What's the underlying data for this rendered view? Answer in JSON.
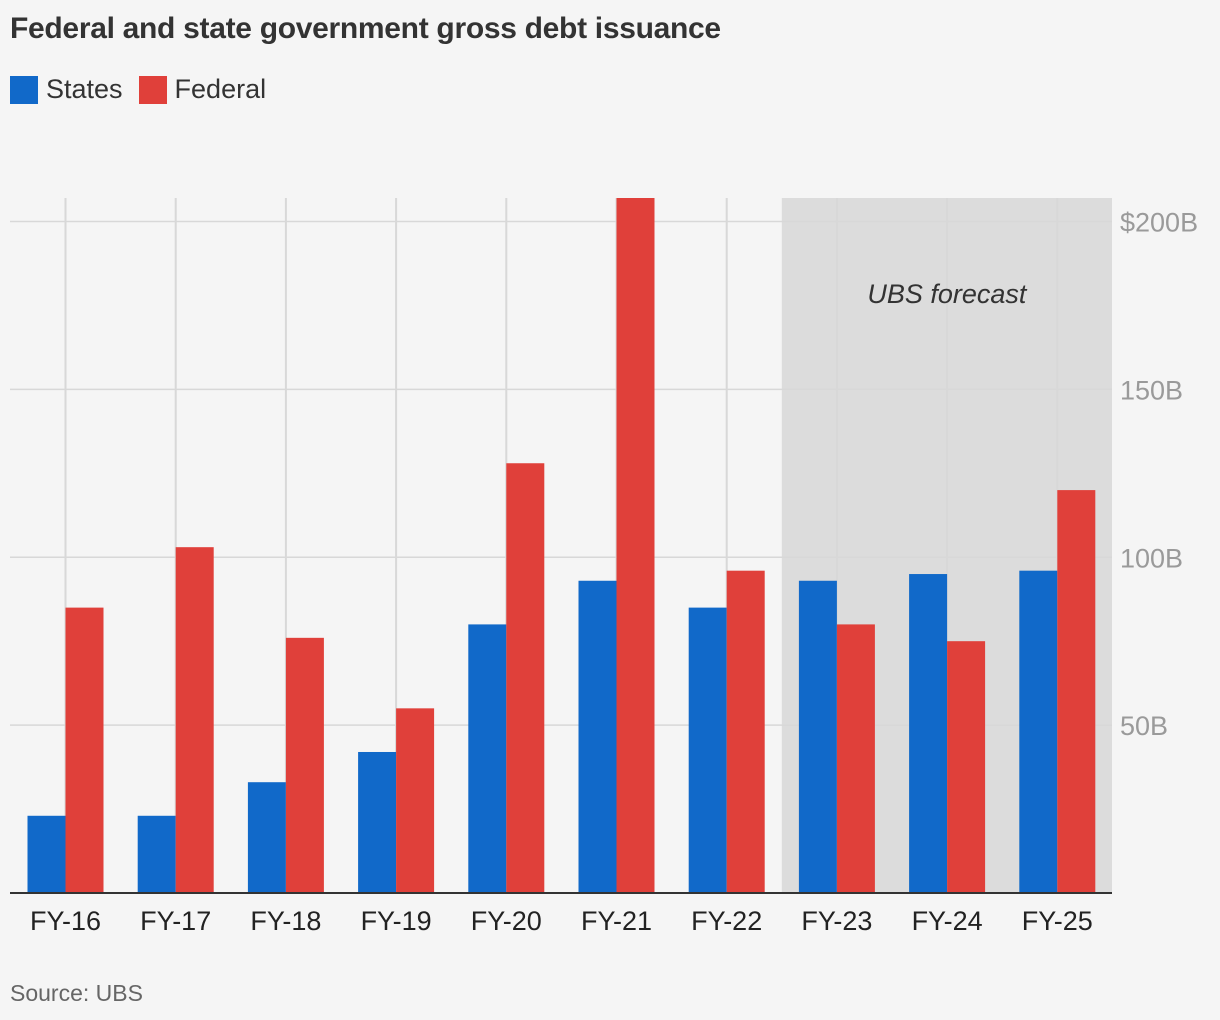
{
  "title": "Federal and state government gross debt issuance",
  "source": "Source: UBS",
  "annotation": "UBS forecast",
  "colors": {
    "states": "#1169c9",
    "federal": "#e0403a",
    "forecast_band": "#dcdcdc",
    "grid": "#d8d8d8",
    "axis": "#333333",
    "tick": "#9a9a9a"
  },
  "chart_data": {
    "type": "bar",
    "categories": [
      "FY-16",
      "FY-17",
      "FY-18",
      "FY-19",
      "FY-20",
      "FY-21",
      "FY-22",
      "FY-23",
      "FY-24",
      "FY-25"
    ],
    "series": [
      {
        "name": "States",
        "values": [
          23,
          23,
          33,
          42,
          80,
          93,
          85,
          93,
          95,
          96
        ]
      },
      {
        "name": "Federal",
        "values": [
          85,
          103,
          76,
          55,
          128,
          207,
          96,
          80,
          75,
          120
        ]
      }
    ],
    "y_ticks": [
      {
        "value": 50,
        "label": "50B"
      },
      {
        "value": 100,
        "label": "100B"
      },
      {
        "value": 150,
        "label": "150B"
      },
      {
        "value": 200,
        "label": "$200B"
      }
    ],
    "ylim": [
      0,
      207
    ],
    "forecast_categories": [
      "FY-23",
      "FY-24",
      "FY-25"
    ],
    "legend_position": "top-left",
    "grid": true
  }
}
